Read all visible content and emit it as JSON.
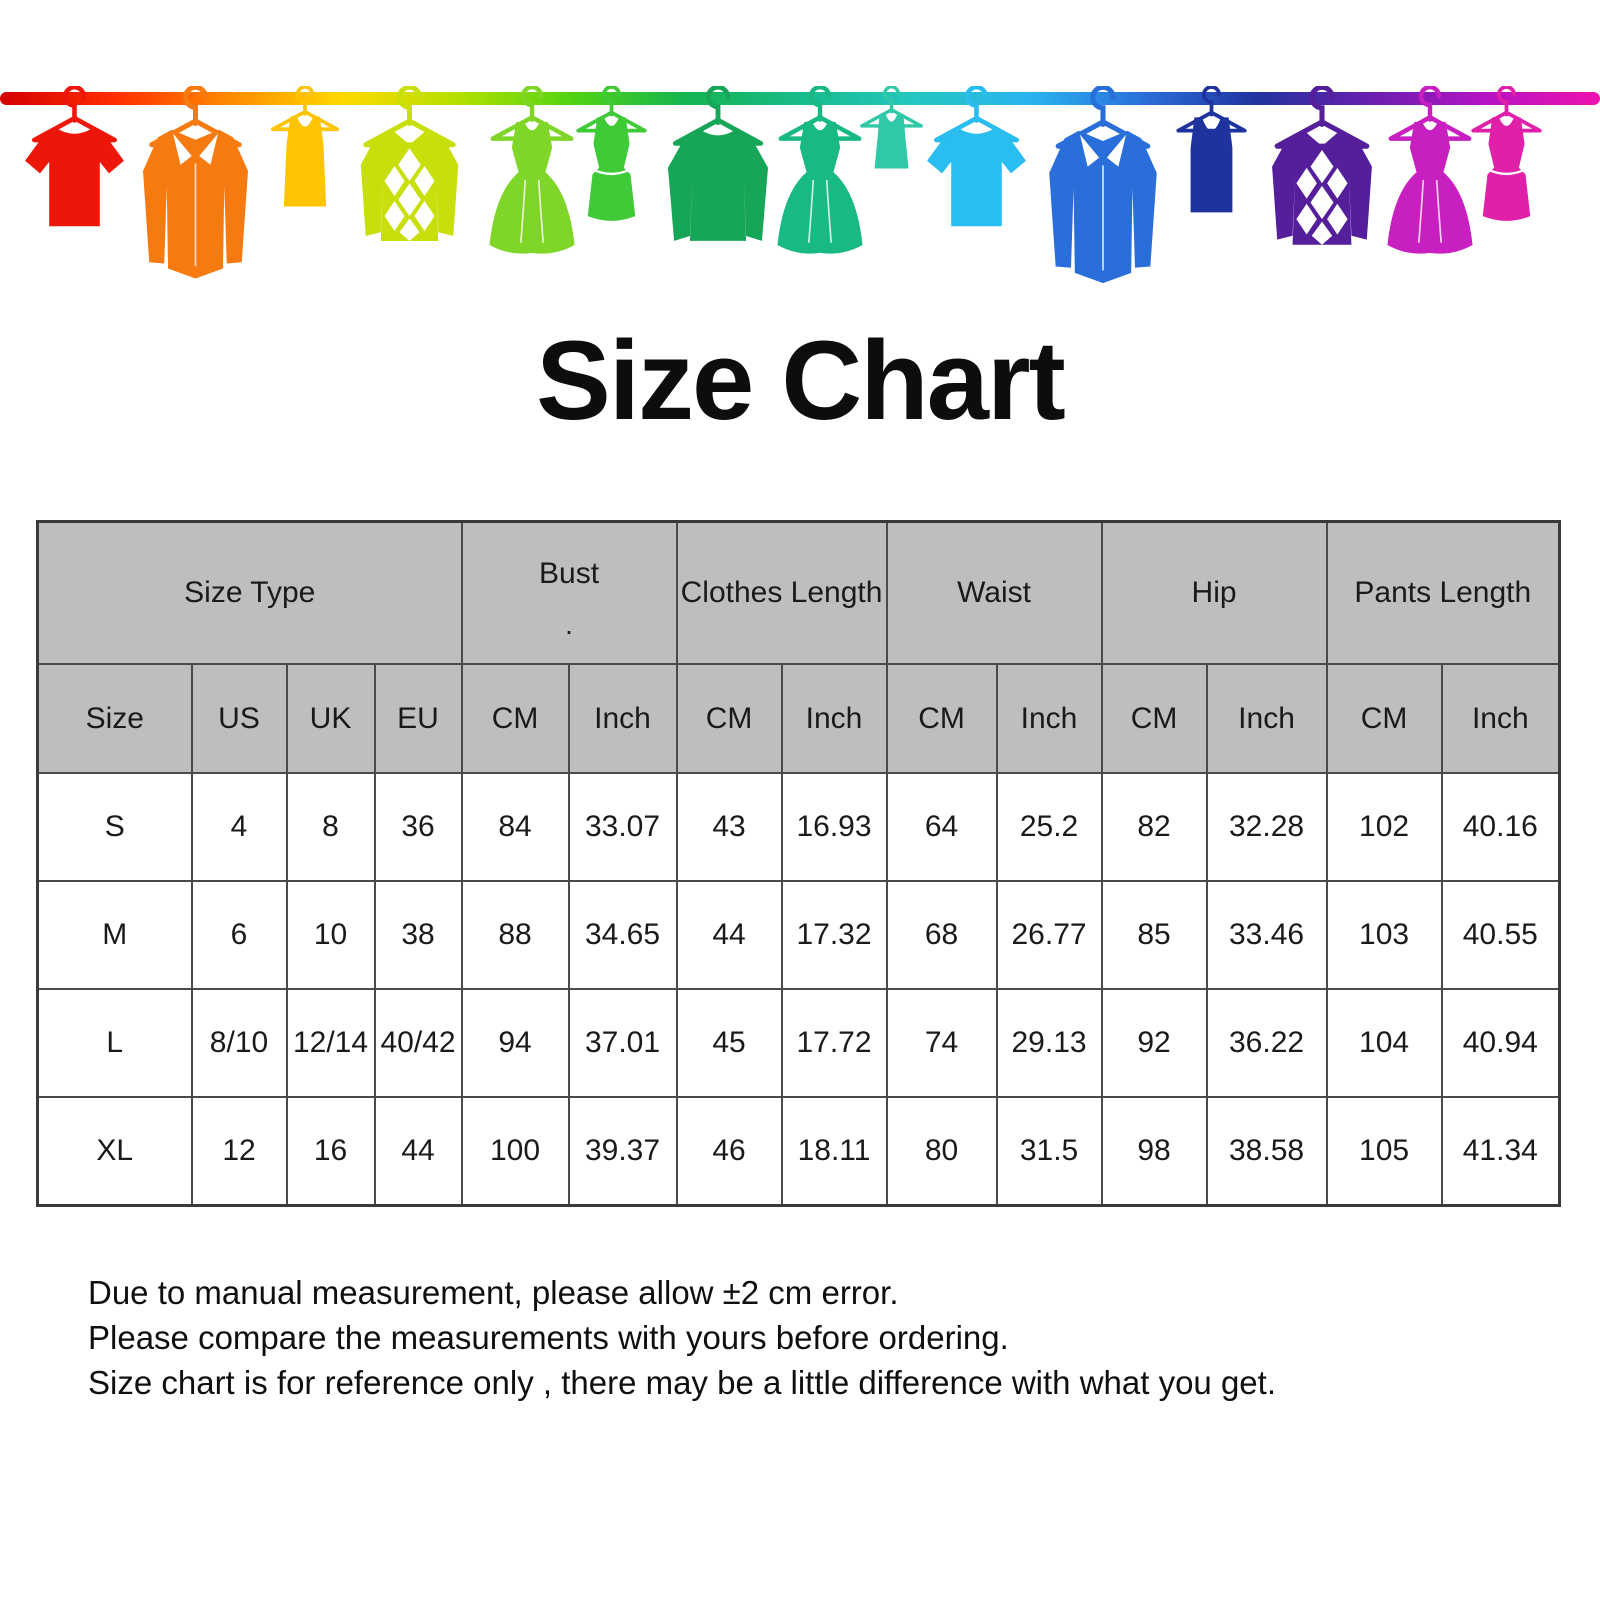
{
  "banner": {
    "rod_gradient": [
      "#d40000",
      "#ff2d00",
      "#ff8a00",
      "#ffd900",
      "#b5e000",
      "#52d312",
      "#14b450",
      "#18bb8a",
      "#25c6c0",
      "#29b4f0",
      "#2a6fd9",
      "#20339f",
      "#6a1fae",
      "#b513c4",
      "#ee13ad"
    ],
    "items": [
      {
        "shape": "tshirt",
        "name": "red-tshirt",
        "color": "#ee1509"
      },
      {
        "shape": "shirt",
        "name": "orange-shirt",
        "color": "#f57a10"
      },
      {
        "shape": "tank-dress",
        "name": "yellow-tank-dress",
        "color": "#fdc404"
      },
      {
        "shape": "argyle-sweater",
        "name": "lime-argyle-sweater",
        "color": "#c8df0c"
      },
      {
        "shape": "flared-dress",
        "name": "green-flared-dress",
        "color": "#7fd629"
      },
      {
        "shape": "fitted-dress",
        "name": "green-fitted-dress",
        "color": "#3fca38"
      },
      {
        "shape": "sweater",
        "name": "green-sweater",
        "color": "#17a658"
      },
      {
        "shape": "flared-dress",
        "name": "teal-flared-dress",
        "color": "#19b983"
      },
      {
        "shape": "tank-top",
        "name": "teal-tank-top",
        "color": "#2fc9a8"
      },
      {
        "shape": "tshirt",
        "name": "cyan-tshirt",
        "color": "#29bdf0"
      },
      {
        "shape": "shirt",
        "name": "blue-shirt",
        "color": "#2a6fd9"
      },
      {
        "shape": "scoop-dress",
        "name": "navy-tank-dress",
        "color": "#1f339f"
      },
      {
        "shape": "argyle-sweater",
        "name": "purple-argyle-sweater",
        "color": "#551f9b"
      },
      {
        "shape": "flared-dress",
        "name": "magenta-flared-dress",
        "color": "#c71fc0"
      },
      {
        "shape": "fitted-dress",
        "name": "pink-tank-dress",
        "color": "#e020a8"
      }
    ]
  },
  "chart_data": {
    "type": "table",
    "title": "Size Chart",
    "group_headers": [
      {
        "label": "Size Type",
        "colspan": 4
      },
      {
        "label": "Bust",
        "colspan": 2,
        "note": "."
      },
      {
        "label": "Clothes Length",
        "colspan": 2
      },
      {
        "label": "Waist",
        "colspan": 2
      },
      {
        "label": "Hip",
        "colspan": 2
      },
      {
        "label": "Pants Length",
        "colspan": 2
      }
    ],
    "columns": [
      "Size",
      "US",
      "UK",
      "EU",
      "CM",
      "Inch",
      "CM",
      "Inch",
      "CM",
      "Inch",
      "CM",
      "Inch",
      "CM",
      "Inch"
    ],
    "rows": [
      [
        "S",
        "4",
        "8",
        "36",
        "84",
        "33.07",
        "43",
        "16.93",
        "64",
        "25.2",
        "82",
        "32.28",
        "102",
        "40.16"
      ],
      [
        "M",
        "6",
        "10",
        "38",
        "88",
        "34.65",
        "44",
        "17.32",
        "68",
        "26.77",
        "85",
        "33.46",
        "103",
        "40.55"
      ],
      [
        "L",
        "8/10",
        "12/14",
        "40/42",
        "94",
        "37.01",
        "45",
        "17.72",
        "74",
        "29.13",
        "92",
        "36.22",
        "104",
        "40.94"
      ],
      [
        "XL",
        "12",
        "16",
        "44",
        "100",
        "39.37",
        "46",
        "18.11",
        "80",
        "31.5",
        "98",
        "38.58",
        "105",
        "41.34"
      ]
    ],
    "notes": [
      "Due to manual measurement, please allow ±2 cm error.",
      "Please compare the measurements with yours before ordering.",
      "Size chart is for reference only , there may be a little difference with what you get."
    ]
  }
}
